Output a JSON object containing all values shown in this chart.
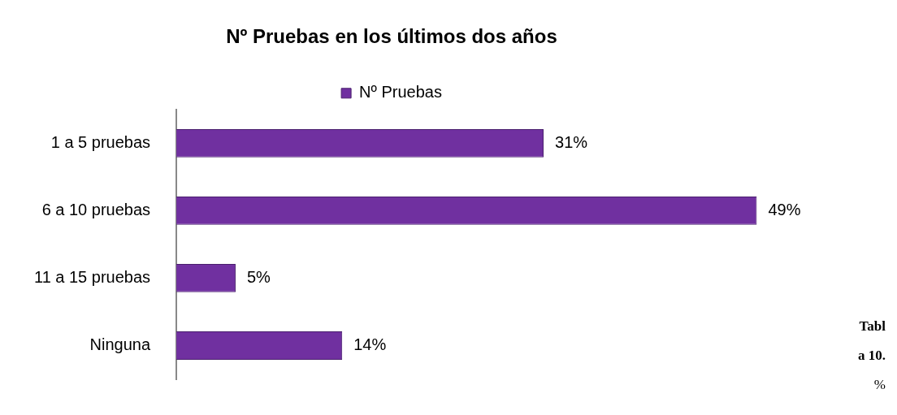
{
  "chart_data": {
    "type": "bar",
    "orientation": "horizontal",
    "title": "Nº Pruebas en los últimos dos años",
    "categories": [
      "1 a 5 pruebas",
      "6 a 10 pruebas",
      "11 a 15 pruebas",
      "Ninguna"
    ],
    "series": [
      {
        "name": "Nº Pruebas",
        "color": "#7030a0",
        "values": [
          31,
          49,
          5,
          14
        ],
        "value_labels": [
          "31%",
          "49%",
          "5%",
          "14%"
        ]
      }
    ],
    "legend": "top",
    "grid": false,
    "annotations": [
      "Tabl",
      "a 10.",
      "%"
    ]
  }
}
